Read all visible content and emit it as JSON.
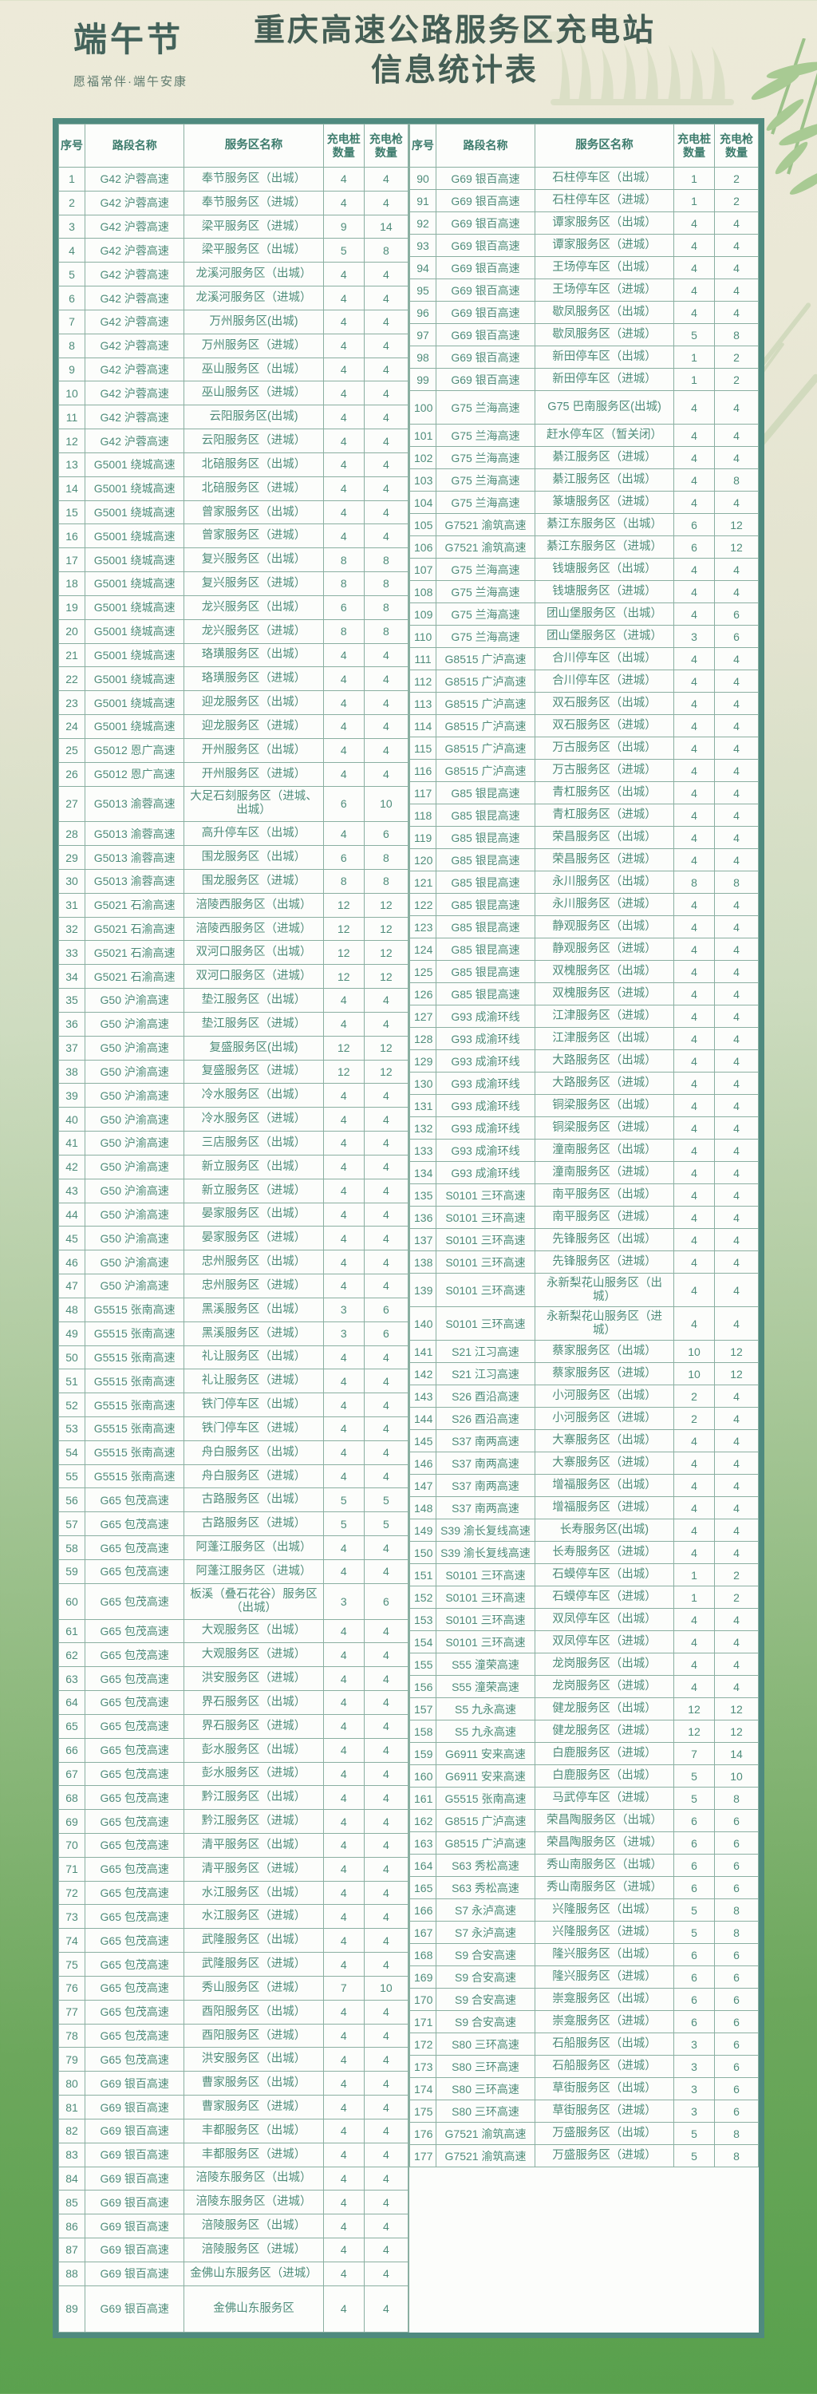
{
  "header": {
    "badge_title": "端午节",
    "badge_subtitle": "愿福常伴·端午安康",
    "title_line1": "重庆高速公路服务区充电站",
    "title_line2": "信息统计表"
  },
  "colors": {
    "outer_border": "#4f8a7f",
    "grid_line": "#8aafa1",
    "cell_text": "#4e8c7a",
    "title_text": "#445e55",
    "bg_top_cream": "#edead9",
    "bg_bottom_green": "#58a04c"
  },
  "table": {
    "columns": [
      "序号",
      "路段名称",
      "服务区名称",
      "充电桩数量",
      "充电枪数量"
    ],
    "left_rows": [
      [
        1,
        "G42 沪蓉高速",
        "奉节服务区（出城）",
        4,
        4
      ],
      [
        2,
        "G42 沪蓉高速",
        "奉节服务区（进城）",
        4,
        4
      ],
      [
        3,
        "G42 沪蓉高速",
        "梁平服务区（进城）",
        9,
        14
      ],
      [
        4,
        "G42 沪蓉高速",
        "梁平服务区（出城）",
        5,
        8
      ],
      [
        5,
        "G42 沪蓉高速",
        "龙溪河服务区（出城）",
        4,
        4
      ],
      [
        6,
        "G42 沪蓉高速",
        "龙溪河服务区（进城）",
        4,
        4
      ],
      [
        7,
        "G42 沪蓉高速",
        "万州服务区(出城)",
        4,
        4
      ],
      [
        8,
        "G42 沪蓉高速",
        "万州服务区（进城）",
        4,
        4
      ],
      [
        9,
        "G42 沪蓉高速",
        "巫山服务区（出城）",
        4,
        4
      ],
      [
        10,
        "G42 沪蓉高速",
        "巫山服务区（进城）",
        4,
        4
      ],
      [
        11,
        "G42 沪蓉高速",
        "云阳服务区(出城)",
        4,
        4
      ],
      [
        12,
        "G42 沪蓉高速",
        "云阳服务区（进城）",
        4,
        4
      ],
      [
        13,
        "G5001 绕城高速",
        "北碚服务区（出城）",
        4,
        4
      ],
      [
        14,
        "G5001 绕城高速",
        "北碚服务区（进城）",
        4,
        4
      ],
      [
        15,
        "G5001 绕城高速",
        "曾家服务区（出城）",
        4,
        4
      ],
      [
        16,
        "G5001 绕城高速",
        "曾家服务区（进城）",
        4,
        4
      ],
      [
        17,
        "G5001 绕城高速",
        "复兴服务区（出城）",
        8,
        8
      ],
      [
        18,
        "G5001 绕城高速",
        "复兴服务区（进城）",
        8,
        8
      ],
      [
        19,
        "G5001 绕城高速",
        "龙兴服务区（出城）",
        6,
        8
      ],
      [
        20,
        "G5001 绕城高速",
        "龙兴服务区（进城）",
        8,
        8
      ],
      [
        21,
        "G5001 绕城高速",
        "珞璜服务区（出城）",
        4,
        4
      ],
      [
        22,
        "G5001 绕城高速",
        "珞璜服务区（进城）",
        4,
        4
      ],
      [
        23,
        "G5001 绕城高速",
        "迎龙服务区（出城）",
        4,
        4
      ],
      [
        24,
        "G5001 绕城高速",
        "迎龙服务区（进城）",
        4,
        4
      ],
      [
        25,
        "G5012 恩广高速",
        "开州服务区（出城）",
        4,
        4
      ],
      [
        26,
        "G5012 恩广高速",
        "开州服务区（进城）",
        4,
        4
      ],
      [
        27,
        "G5013 渝蓉高速",
        "大足石刻服务区（进城、出城）",
        6,
        10
      ],
      [
        28,
        "G5013 渝蓉高速",
        "高升停车区（出城）",
        4,
        6
      ],
      [
        29,
        "G5013 渝蓉高速",
        "围龙服务区（出城）",
        6,
        8
      ],
      [
        30,
        "G5013 渝蓉高速",
        "围龙服务区（进城）",
        8,
        8
      ],
      [
        31,
        "G5021 石渝高速",
        "涪陵西服务区（出城）",
        12,
        12
      ],
      [
        32,
        "G5021 石渝高速",
        "涪陵西服务区（进城）",
        12,
        12
      ],
      [
        33,
        "G5021 石渝高速",
        "双河口服务区（出城）",
        12,
        12
      ],
      [
        34,
        "G5021 石渝高速",
        "双河口服务区（进城）",
        12,
        12
      ],
      [
        35,
        "G50 沪渝高速",
        "垫江服务区（出城）",
        4,
        4
      ],
      [
        36,
        "G50 沪渝高速",
        "垫江服务区（进城）",
        4,
        4
      ],
      [
        37,
        "G50 沪渝高速",
        "复盛服务区(出城)",
        12,
        12
      ],
      [
        38,
        "G50 沪渝高速",
        "复盛服务区（进城）",
        12,
        12
      ],
      [
        39,
        "G50 沪渝高速",
        "冷水服务区（出城）",
        4,
        4
      ],
      [
        40,
        "G50 沪渝高速",
        "冷水服务区（进城）",
        4,
        4
      ],
      [
        41,
        "G50 沪渝高速",
        "三店服务区（出城）",
        4,
        4
      ],
      [
        42,
        "G50 沪渝高速",
        "新立服务区（出城）",
        4,
        4
      ],
      [
        43,
        "G50 沪渝高速",
        "新立服务区（进城）",
        4,
        4
      ],
      [
        44,
        "G50 沪渝高速",
        "晏家服务区（出城）",
        4,
        4
      ],
      [
        45,
        "G50 沪渝高速",
        "晏家服务区（进城）",
        4,
        4
      ],
      [
        46,
        "G50 沪渝高速",
        "忠州服务区（出城）",
        4,
        4
      ],
      [
        47,
        "G50 沪渝高速",
        "忠州服务区（进城）",
        4,
        4
      ],
      [
        48,
        "G5515 张南高速",
        "黑溪服务区（出城）",
        3,
        6
      ],
      [
        49,
        "G5515 张南高速",
        "黑溪服务区（进城）",
        3,
        6
      ],
      [
        50,
        "G5515 张南高速",
        "礼让服务区（出城）",
        4,
        4
      ],
      [
        51,
        "G5515 张南高速",
        "礼让服务区（进城）",
        4,
        4
      ],
      [
        52,
        "G5515 张南高速",
        "铁门停车区（出城）",
        4,
        4
      ],
      [
        53,
        "G5515 张南高速",
        "铁门停车区（进城）",
        4,
        4
      ],
      [
        54,
        "G5515 张南高速",
        "舟白服务区（出城）",
        4,
        4
      ],
      [
        55,
        "G5515 张南高速",
        "舟白服务区（进城）",
        4,
        4
      ],
      [
        56,
        "G65 包茂高速",
        "古路服务区（出城）",
        5,
        5
      ],
      [
        57,
        "G65 包茂高速",
        "古路服务区（进城）",
        5,
        5
      ],
      [
        58,
        "G65 包茂高速",
        "阿蓬江服务区（出城）",
        4,
        4
      ],
      [
        59,
        "G65 包茂高速",
        "阿蓬江服务区（进城）",
        4,
        4
      ],
      [
        60,
        "G65 包茂高速",
        "板溪（叠石花谷）服务区（出城）",
        3,
        6
      ],
      [
        61,
        "G65 包茂高速",
        "大观服务区（出城）",
        4,
        4
      ],
      [
        62,
        "G65 包茂高速",
        "大观服务区（进城）",
        4,
        4
      ],
      [
        63,
        "G65 包茂高速",
        "洪安服务区（进城）",
        4,
        4
      ],
      [
        64,
        "G65 包茂高速",
        "界石服务区（出城）",
        4,
        4
      ],
      [
        65,
        "G65 包茂高速",
        "界石服务区（进城）",
        4,
        4
      ],
      [
        66,
        "G65 包茂高速",
        "彭水服务区（出城）",
        4,
        4
      ],
      [
        67,
        "G65 包茂高速",
        "彭水服务区（进城）",
        4,
        4
      ],
      [
        68,
        "G65 包茂高速",
        "黔江服务区（出城）",
        4,
        4
      ],
      [
        69,
        "G65 包茂高速",
        "黔江服务区（进城）",
        4,
        4
      ],
      [
        70,
        "G65 包茂高速",
        "清平服务区（出城）",
        4,
        4
      ],
      [
        71,
        "G65 包茂高速",
        "清平服务区（进城）",
        4,
        4
      ],
      [
        72,
        "G65 包茂高速",
        "水江服务区（出城）",
        4,
        4
      ],
      [
        73,
        "G65 包茂高速",
        "水江服务区（进城）",
        4,
        4
      ],
      [
        74,
        "G65 包茂高速",
        "武隆服务区（出城）",
        4,
        4
      ],
      [
        75,
        "G65 包茂高速",
        "武隆服务区（进城）",
        4,
        4
      ],
      [
        76,
        "G65 包茂高速",
        "秀山服务区（进城）",
        7,
        10
      ],
      [
        77,
        "G65 包茂高速",
        "酉阳服务区（出城）",
        4,
        4
      ],
      [
        78,
        "G65 包茂高速",
        "酉阳服务区（进城）",
        4,
        4
      ],
      [
        79,
        "G65 包茂高速",
        "洪安服务区（出城）",
        4,
        4
      ],
      [
        80,
        "G69 银百高速",
        "曹家服务区（出城）",
        4,
        4
      ],
      [
        81,
        "G69 银百高速",
        "曹家服务区（进城）",
        4,
        4
      ],
      [
        82,
        "G69 银百高速",
        "丰都服务区（出城）",
        4,
        4
      ],
      [
        83,
        "G69 银百高速",
        "丰都服务区（进城）",
        4,
        4
      ],
      [
        84,
        "G69 银百高速",
        "涪陵东服务区（出城）",
        4,
        4
      ],
      [
        85,
        "G69 银百高速",
        "涪陵东服务区（进城）",
        4,
        4
      ],
      [
        86,
        "G69 银百高速",
        "涪陵服务区（出城）",
        4,
        4
      ],
      [
        87,
        "G69 银百高速",
        "涪陵服务区（进城）",
        4,
        4
      ],
      [
        88,
        "G69 银百高速",
        "金佛山东服务区（进城）",
        4,
        4
      ],
      [
        89,
        "G69 银百高速",
        "金佛山东服务区",
        4,
        4
      ]
    ],
    "right_rows": [
      [
        90,
        "G69 银百高速",
        "石柱停车区（出城）",
        1,
        2
      ],
      [
        91,
        "G69 银百高速",
        "石柱停车区（进城）",
        1,
        2
      ],
      [
        92,
        "G69 银百高速",
        "谭家服务区（出城）",
        4,
        4
      ],
      [
        93,
        "G69 银百高速",
        "谭家服务区（进城）",
        4,
        4
      ],
      [
        94,
        "G69 银百高速",
        "王场停车区（出城）",
        4,
        4
      ],
      [
        95,
        "G69 银百高速",
        "王场停车区（进城）",
        4,
        4
      ],
      [
        96,
        "G69 银百高速",
        "歇凤服务区（出城）",
        4,
        4
      ],
      [
        97,
        "G69 银百高速",
        "歇凤服务区（进城）",
        5,
        8
      ],
      [
        98,
        "G69 银百高速",
        "新田停车区（出城）",
        1,
        2
      ],
      [
        99,
        "G69 银百高速",
        "新田停车区（进城）",
        1,
        2
      ],
      [
        100,
        "G75 兰海高速",
        "G75 巴南服务区(出城)",
        4,
        4
      ],
      [
        101,
        "G75 兰海高速",
        "赶水停车区（暂关闭）",
        4,
        4
      ],
      [
        102,
        "G75 兰海高速",
        "綦江服务区（进城）",
        4,
        4
      ],
      [
        103,
        "G75 兰海高速",
        "綦江服务区（出城）",
        4,
        8
      ],
      [
        104,
        "G75 兰海高速",
        "篆塘服务区（进城）",
        4,
        4
      ],
      [
        105,
        "G7521 渝筑高速",
        "綦江东服务区（出城）",
        6,
        12
      ],
      [
        106,
        "G7521 渝筑高速",
        "綦江东服务区（进城）",
        6,
        12
      ],
      [
        107,
        "G75 兰海高速",
        "钱塘服务区（出城）",
        4,
        4
      ],
      [
        108,
        "G75 兰海高速",
        "钱塘服务区（进城）",
        4,
        4
      ],
      [
        109,
        "G75 兰海高速",
        "团山堡服务区（出城）",
        4,
        6
      ],
      [
        110,
        "G75 兰海高速",
        "团山堡服务区（进城）",
        3,
        6
      ],
      [
        111,
        "G8515 广泸高速",
        "合川停车区（出城）",
        4,
        4
      ],
      [
        112,
        "G8515 广泸高速",
        "合川停车区（进城）",
        4,
        4
      ],
      [
        113,
        "G8515 广泸高速",
        "双石服务区（出城）",
        4,
        4
      ],
      [
        114,
        "G8515 广泸高速",
        "双石服务区（进城）",
        4,
        4
      ],
      [
        115,
        "G8515 广泸高速",
        "万古服务区（出城）",
        4,
        4
      ],
      [
        116,
        "G8515 广泸高速",
        "万古服务区（进城）",
        4,
        4
      ],
      [
        117,
        "G85 银昆高速",
        "青杠服务区（出城）",
        4,
        4
      ],
      [
        118,
        "G85 银昆高速",
        "青杠服务区（进城）",
        4,
        4
      ],
      [
        119,
        "G85 银昆高速",
        "荣昌服务区（出城）",
        4,
        4
      ],
      [
        120,
        "G85 银昆高速",
        "荣昌服务区（进城）",
        4,
        4
      ],
      [
        121,
        "G85 银昆高速",
        "永川服务区（出城）",
        8,
        8
      ],
      [
        122,
        "G85 银昆高速",
        "永川服务区（进城）",
        4,
        4
      ],
      [
        123,
        "G85 银昆高速",
        "静观服务区（出城）",
        4,
        4
      ],
      [
        124,
        "G85 银昆高速",
        "静观服务区（进城）",
        4,
        4
      ],
      [
        125,
        "G85 银昆高速",
        "双槐服务区（出城）",
        4,
        4
      ],
      [
        126,
        "G85 银昆高速",
        "双槐服务区（进城）",
        4,
        4
      ],
      [
        127,
        "G93 成渝环线",
        "江津服务区（进城）",
        4,
        4
      ],
      [
        128,
        "G93 成渝环线",
        "江津服务区（出城）",
        4,
        4
      ],
      [
        129,
        "G93 成渝环线",
        "大路服务区（出城）",
        4,
        4
      ],
      [
        130,
        "G93 成渝环线",
        "大路服务区（进城）",
        4,
        4
      ],
      [
        131,
        "G93 成渝环线",
        "铜梁服务区（出城）",
        4,
        4
      ],
      [
        132,
        "G93 成渝环线",
        "铜梁服务区（进城）",
        4,
        4
      ],
      [
        133,
        "G93 成渝环线",
        "潼南服务区（出城）",
        4,
        4
      ],
      [
        134,
        "G93 成渝环线",
        "潼南服务区（进城）",
        4,
        4
      ],
      [
        135,
        "S0101 三环高速",
        "南平服务区（出城）",
        4,
        4
      ],
      [
        136,
        "S0101 三环高速",
        "南平服务区（进城）",
        4,
        4
      ],
      [
        137,
        "S0101 三环高速",
        "先锋服务区（出城）",
        4,
        4
      ],
      [
        138,
        "S0101 三环高速",
        "先锋服务区（进城）",
        4,
        4
      ],
      [
        139,
        "S0101 三环高速",
        "永新梨花山服务区（出城）",
        4,
        4
      ],
      [
        140,
        "S0101 三环高速",
        "永新梨花山服务区（进城）",
        4,
        4
      ],
      [
        141,
        "S21 江习高速",
        "蔡家服务区（出城）",
        10,
        12
      ],
      [
        142,
        "S21 江习高速",
        "蔡家服务区（进城）",
        10,
        12
      ],
      [
        143,
        "S26 酉沿高速",
        "小河服务区（出城）",
        2,
        4
      ],
      [
        144,
        "S26 酉沿高速",
        "小河服务区（进城）",
        2,
        4
      ],
      [
        145,
        "S37 南两高速",
        "大寨服务区（出城）",
        4,
        4
      ],
      [
        146,
        "S37 南两高速",
        "大寨服务区（进城）",
        4,
        4
      ],
      [
        147,
        "S37 南两高速",
        "增福服务区（出城）",
        4,
        4
      ],
      [
        148,
        "S37 南两高速",
        "增福服务区（进城）",
        4,
        4
      ],
      [
        149,
        "S39 渝长复线高速",
        "长寿服务区(出城)",
        4,
        4
      ],
      [
        150,
        "S39 渝长复线高速",
        "长寿服务区（进城）",
        4,
        4
      ],
      [
        151,
        "S0101 三环高速",
        "石蟆停车区（出城）",
        1,
        2
      ],
      [
        152,
        "S0101 三环高速",
        "石蟆停车区（进城）",
        1,
        2
      ],
      [
        153,
        "S0101 三环高速",
        "双凤停车区（出城）",
        4,
        4
      ],
      [
        154,
        "S0101 三环高速",
        "双凤停车区（进城）",
        4,
        4
      ],
      [
        155,
        "S55 潼荣高速",
        "龙岗服务区（出城）",
        4,
        4
      ],
      [
        156,
        "S55 潼荣高速",
        "龙岗服务区（进城）",
        4,
        4
      ],
      [
        157,
        "S5 九永高速",
        "健龙服务区（出城）",
        12,
        12
      ],
      [
        158,
        "S5 九永高速",
        "健龙服务区（进城）",
        12,
        12
      ],
      [
        159,
        "G6911 安来高速",
        "白鹿服务区（进城）",
        7,
        14
      ],
      [
        160,
        "G6911 安来高速",
        "白鹿服务区（出城）",
        5,
        10
      ],
      [
        161,
        "G5515 张南高速",
        "马武停车区（进城）",
        5,
        8
      ],
      [
        162,
        "G8515 广泸高速",
        "荣昌陶服务区（出城）",
        6,
        6
      ],
      [
        163,
        "G8515 广泸高速",
        "荣昌陶服务区（进城）",
        6,
        6
      ],
      [
        164,
        "S63 秀松高速",
        "秀山南服务区（出城）",
        6,
        6
      ],
      [
        165,
        "S63 秀松高速",
        "秀山南服务区（进城）",
        6,
        6
      ],
      [
        166,
        "S7 永泸高速",
        "兴隆服务区（出城）",
        5,
        8
      ],
      [
        167,
        "S7 永泸高速",
        "兴隆服务区（进城）",
        5,
        8
      ],
      [
        168,
        "S9 合安高速",
        "隆兴服务区（出城）",
        6,
        6
      ],
      [
        169,
        "S9 合安高速",
        "隆兴服务区（进城）",
        6,
        6
      ],
      [
        170,
        "S9 合安高速",
        "崇龛服务区（出城）",
        6,
        6
      ],
      [
        171,
        "S9 合安高速",
        "崇龛服务区（进城）",
        6,
        6
      ],
      [
        172,
        "S80 三环高速",
        "石船服务区（出城）",
        3,
        6
      ],
      [
        173,
        "S80 三环高速",
        "石船服务区（进城）",
        3,
        6
      ],
      [
        174,
        "S80 三环高速",
        "草街服务区（出城）",
        3,
        6
      ],
      [
        175,
        "S80 三环高速",
        "草街服务区（进城）",
        3,
        6
      ],
      [
        176,
        "G7521 渝筑高速",
        "万盛服务区（出城）",
        5,
        8
      ],
      [
        177,
        "G7521 渝筑高速",
        "万盛服务区（进城）",
        5,
        8
      ]
    ]
  }
}
